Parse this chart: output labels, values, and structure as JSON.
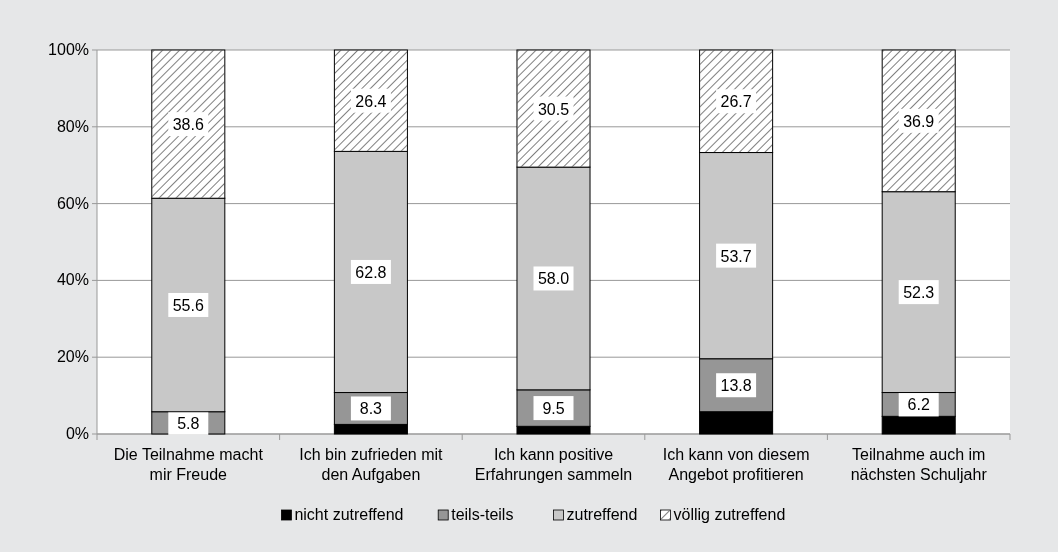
{
  "chart_data": {
    "type": "bar",
    "stacked": true,
    "categories": [
      "Die Teilnahme macht mir Freude",
      "Ich bin zufrieden mit den Aufgaben",
      "Ich kann positive Erfahrungen sammeln",
      "Ich kann von diesem Angebot profitieren",
      "Teilnahme auch im nächsten Schuljahr"
    ],
    "series": [
      {
        "name": "nicht zutreffend",
        "color": "#000000",
        "values": [
          0,
          2.5,
          2.0,
          5.8,
          4.6
        ],
        "value_labels": [
          null,
          null,
          null,
          null,
          null
        ]
      },
      {
        "name": "teils-teils",
        "color": "#969696",
        "values": [
          5.8,
          8.3,
          9.5,
          13.8,
          6.2
        ],
        "value_labels": [
          "5.8",
          "8.3",
          "9.5",
          "13.8",
          "6.2"
        ]
      },
      {
        "name": "zutreffend",
        "color": "#c8c8c8",
        "values": [
          55.6,
          62.8,
          58.0,
          53.7,
          52.3
        ],
        "value_labels": [
          "55.6",
          "62.8",
          "58.0",
          "53.7",
          "52.3"
        ]
      },
      {
        "name": "völlig zutreffend",
        "color": "#ffffff",
        "values": [
          38.6,
          26.4,
          30.5,
          26.7,
          36.9
        ],
        "value_labels": [
          "38.6",
          "26.4",
          "30.5",
          "26.7",
          "36.9"
        ]
      }
    ],
    "ylim": [
      0,
      100
    ],
    "yticks": [
      {
        "value": 0,
        "label": "0%"
      },
      {
        "value": 20,
        "label": "20%"
      },
      {
        "value": 40,
        "label": "40%"
      },
      {
        "value": 60,
        "label": "60%"
      },
      {
        "value": 80,
        "label": "80%"
      },
      {
        "value": 100,
        "label": "100%"
      }
    ],
    "grid": "y",
    "legend": "bottom"
  }
}
